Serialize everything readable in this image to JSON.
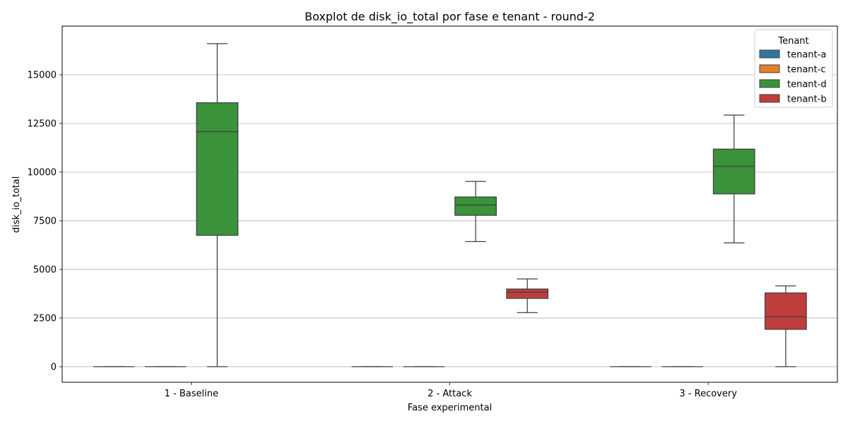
{
  "chart_data": {
    "type": "box",
    "title": "Boxplot de disk_io_total por fase e tenant - round-2",
    "xlabel": "Fase experimental",
    "ylabel": "disk_io_total",
    "ylim": [
      -800,
      17500
    ],
    "yticks": [
      0,
      2500,
      5000,
      7500,
      10000,
      12500,
      15000
    ],
    "ytick_labels": [
      "0",
      "2500",
      "5000",
      "7500",
      "10000",
      "12500",
      "15000"
    ],
    "grid": "horizontal",
    "categories": [
      "1 - Baseline",
      "2 - Attack",
      "3 - Recovery"
    ],
    "legend": {
      "title": "Tenant",
      "placement": "top-right"
    },
    "series": [
      {
        "name": "tenant-a",
        "color": "#3274a1",
        "boxes": [
          {
            "min": 0,
            "q1": 0,
            "median": 0,
            "q3": 0,
            "max": 0
          },
          {
            "min": 0,
            "q1": 0,
            "median": 0,
            "q3": 0,
            "max": 0
          },
          {
            "min": 0,
            "q1": 0,
            "median": 0,
            "q3": 0,
            "max": 0
          }
        ]
      },
      {
        "name": "tenant-c",
        "color": "#e1812c",
        "boxes": [
          {
            "min": 0,
            "q1": 0,
            "median": 0,
            "q3": 0,
            "max": 0
          },
          {
            "min": 0,
            "q1": 0,
            "median": 0,
            "q3": 0,
            "max": 0
          },
          {
            "min": 0,
            "q1": 0,
            "median": 0,
            "q3": 0,
            "max": 0
          }
        ]
      },
      {
        "name": "tenant-d",
        "color": "#3a923a",
        "boxes": [
          {
            "min": 0,
            "q1": 6750,
            "median": 12080,
            "q3": 13560,
            "max": 16600
          },
          {
            "min": 6430,
            "q1": 7780,
            "median": 8310,
            "q3": 8720,
            "max": 9520
          },
          {
            "min": 6360,
            "q1": 8880,
            "median": 10300,
            "q3": 11180,
            "max": 12930
          }
        ]
      },
      {
        "name": "tenant-b",
        "color": "#c03d3e",
        "boxes": [
          null,
          {
            "min": 2780,
            "q1": 3510,
            "median": 3830,
            "q3": 3990,
            "max": 4510
          },
          {
            "min": 0,
            "q1": 1920,
            "median": 2570,
            "q3": 3790,
            "max": 4150
          }
        ]
      }
    ]
  }
}
